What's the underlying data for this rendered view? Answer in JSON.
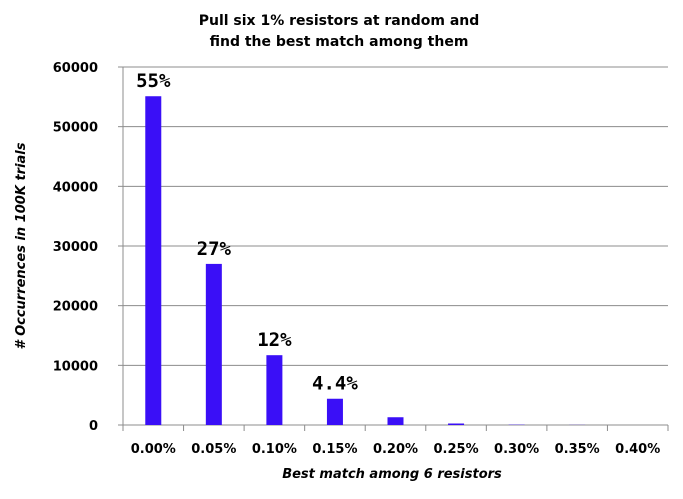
{
  "chart_data": {
    "type": "bar",
    "title_lines": [
      "Pull six 1% resistors at random and",
      "find the best match among them"
    ],
    "xlabel": "Best match among 6 resistors",
    "ylabel": "# Occurrences in 100K trials",
    "categories": [
      "0.00%",
      "0.05%",
      "0.10%",
      "0.15%",
      "0.20%",
      "0.25%",
      "0.30%",
      "0.35%",
      "0.40%"
    ],
    "values": [
      55100,
      27000,
      11700,
      4400,
      1300,
      250,
      50,
      20,
      0
    ],
    "data_labels": [
      "55%",
      "27%",
      "12%",
      "4.4%",
      "",
      "",
      "",
      "",
      ""
    ],
    "ylim": [
      0,
      60000
    ],
    "yticks": [
      "0",
      "10000",
      "20000",
      "30000",
      "40000",
      "50000",
      "60000"
    ],
    "bar_color": "#3a0ff7",
    "grid": true,
    "legend": "none"
  }
}
